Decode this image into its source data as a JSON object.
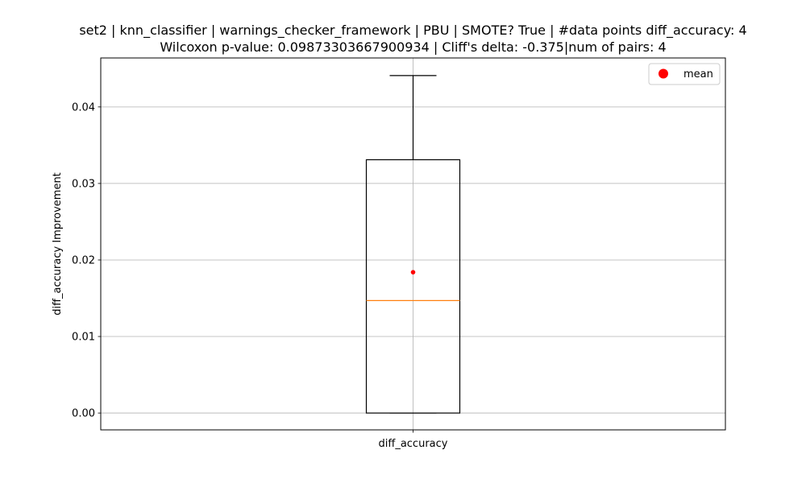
{
  "chart_data": {
    "type": "box",
    "title_line1": "set2 | knn_classifier | warnings_checker_framework | PBU | SMOTE? True | #data points diff_accuracy: 4",
    "title_line2": "Wilcoxon p-value: 0.09873303667900934 | Cliff's delta: -0.375|num of pairs: 4",
    "xlabel": "",
    "ylabel": "diff_accuracy Improvement",
    "categories": [
      "diff_accuracy"
    ],
    "ylim": [
      -0.0022,
      0.0464
    ],
    "yticks": [
      0.0,
      0.01,
      0.02,
      0.03,
      0.04
    ],
    "ytick_labels": [
      "0.00",
      "0.01",
      "0.02",
      "0.03",
      "0.04"
    ],
    "grid": true,
    "box": {
      "whisker_low": 0.0,
      "q1": 0.0,
      "median": 0.0147,
      "q3": 0.0331,
      "whisker_high": 0.0441,
      "mean": 0.0184
    },
    "legend": {
      "label": "mean",
      "position": "top-right"
    },
    "colors": {
      "box": "#000000",
      "median": "#ff7f0e",
      "mean": "#ff0000",
      "grid": "#b0b0b0"
    }
  }
}
